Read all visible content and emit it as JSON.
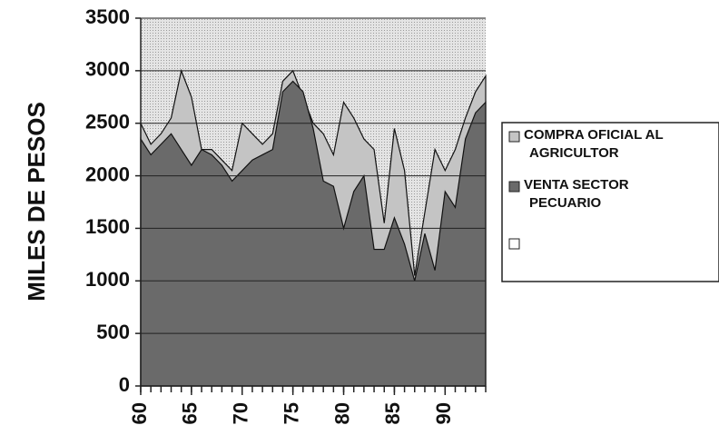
{
  "chart_data": {
    "type": "area",
    "y_label": "MILES DE PESOS",
    "x": [
      60,
      61,
      62,
      63,
      64,
      65,
      66,
      67,
      68,
      69,
      70,
      71,
      72,
      73,
      74,
      75,
      76,
      77,
      78,
      79,
      80,
      81,
      82,
      83,
      84,
      85,
      86,
      87,
      88,
      89,
      90,
      91,
      92,
      93,
      94
    ],
    "series": [
      {
        "name": "COMPRA OFICIAL AL AGRICULTOR",
        "color": "#c4c4c4",
        "values": [
          2500,
          2300,
          2400,
          2550,
          3000,
          2750,
          2250,
          2250,
          2150,
          2050,
          2500,
          2400,
          2300,
          2400,
          2900,
          3000,
          2750,
          2500,
          2400,
          2200,
          2700,
          2550,
          2350,
          2250,
          1550,
          2450,
          2050,
          1050,
          1650,
          2250,
          2050,
          2250,
          2550,
          2800,
          2950
        ]
      },
      {
        "name": "VENTA SECTOR PECUARIO",
        "color": "#6a6a6a",
        "values": [
          2350,
          2200,
          2300,
          2400,
          2250,
          2100,
          2250,
          2200,
          2100,
          1950,
          2050,
          2150,
          2200,
          2250,
          2800,
          2900,
          2800,
          2450,
          1950,
          1900,
          1500,
          1850,
          2000,
          1300,
          1300,
          1600,
          1350,
          1000,
          1450,
          1100,
          1850,
          1700,
          2350,
          2600,
          2700
        ]
      }
    ],
    "xlim": [
      60,
      94
    ],
    "xticks": [
      60,
      65,
      70,
      75,
      80,
      85,
      90
    ],
    "ylim": [
      0,
      3500
    ],
    "yticks": [
      0,
      500,
      1000,
      1500,
      2000,
      2500,
      3000,
      3500
    ],
    "grid": true
  }
}
